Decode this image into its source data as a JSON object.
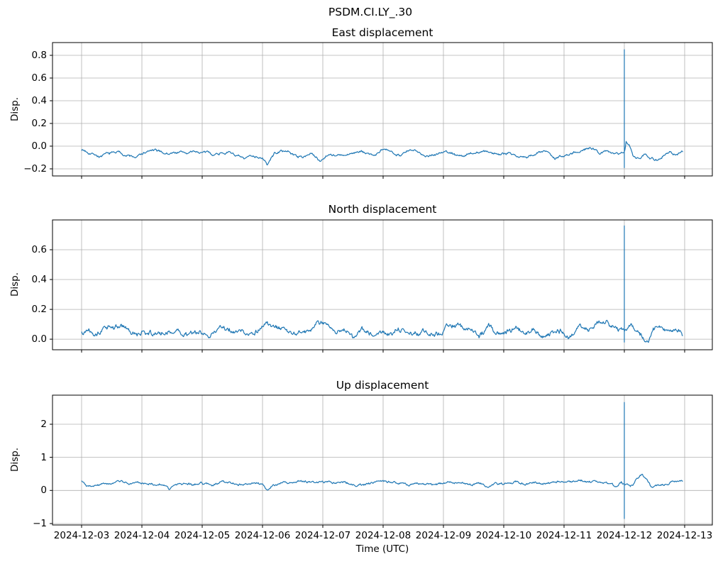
{
  "figure": {
    "suptitle": "PSDM.CI.LY_.30",
    "background": "#ffffff",
    "line_color": "#1f77b4",
    "grid_color": "#b0b0b0",
    "axis_color": "#000000",
    "text_color": "#000000"
  },
  "xaxis": {
    "label": "Time (UTC)",
    "tick_labels": [
      "2024-12-03",
      "2024-12-04",
      "2024-12-05",
      "2024-12-06",
      "2024-12-07",
      "2024-12-08",
      "2024-12-09",
      "2024-12-10",
      "2024-12-11",
      "2024-12-12",
      "2024-12-13"
    ],
    "tick_days": [
      0,
      1,
      2,
      3,
      4,
      5,
      6,
      7,
      8,
      9,
      10
    ],
    "xlim_days": [
      -0.482,
      10.459
    ]
  },
  "chart_data": [
    {
      "type": "line",
      "title": "East displacement",
      "ylabel": "Disp.",
      "ylim": [
        -0.2625,
        0.9125
      ],
      "yticks": [
        -0.2,
        0.0,
        0.2,
        0.4,
        0.6,
        0.8
      ],
      "ytick_labels": [
        "−0.2",
        "0.0",
        "0.2",
        "0.4",
        "0.6",
        "0.8"
      ],
      "x_range_days": [
        0,
        9.97
      ],
      "grid": true,
      "noise_amp": 0.016,
      "jitter": 0.006,
      "noise_seed": 7,
      "spike": {
        "day": 9.0,
        "max": 0.85,
        "min": -0.19
      },
      "baseline_anchors": [
        [
          0,
          -0.03
        ],
        [
          0.1,
          -0.05
        ],
        [
          0.2,
          -0.06
        ],
        [
          0.3,
          -0.09
        ],
        [
          0.45,
          -0.07
        ],
        [
          0.6,
          -0.05
        ],
        [
          0.75,
          -0.08
        ],
        [
          0.9,
          -0.1
        ],
        [
          1.0,
          -0.07
        ],
        [
          1.15,
          -0.04
        ],
        [
          1.3,
          -0.05
        ],
        [
          1.45,
          -0.07
        ],
        [
          1.6,
          -0.05
        ],
        [
          1.75,
          -0.06
        ],
        [
          1.9,
          -0.05
        ],
        [
          2.05,
          -0.06
        ],
        [
          2.2,
          -0.07
        ],
        [
          2.35,
          -0.05
        ],
        [
          2.5,
          -0.06
        ],
        [
          2.7,
          -0.12
        ],
        [
          2.85,
          -0.08
        ],
        [
          3.0,
          -0.1
        ],
        [
          3.08,
          -0.17
        ],
        [
          3.2,
          -0.06
        ],
        [
          3.35,
          -0.04
        ],
        [
          3.5,
          -0.07
        ],
        [
          3.65,
          -0.1
        ],
        [
          3.8,
          -0.06
        ],
        [
          3.95,
          -0.13
        ],
        [
          4.1,
          -0.06
        ],
        [
          4.25,
          -0.08
        ],
        [
          4.4,
          -0.09
        ],
        [
          4.55,
          -0.05
        ],
        [
          4.7,
          -0.06
        ],
        [
          4.85,
          -0.08
        ],
        [
          5.0,
          -0.04
        ],
        [
          5.15,
          -0.05
        ],
        [
          5.3,
          -0.07
        ],
        [
          5.45,
          -0.04
        ],
        [
          5.6,
          -0.06
        ],
        [
          5.75,
          -0.08
        ],
        [
          5.9,
          -0.06
        ],
        [
          6.05,
          -0.05
        ],
        [
          6.2,
          -0.07
        ],
        [
          6.35,
          -0.09
        ],
        [
          6.5,
          -0.06
        ],
        [
          6.65,
          -0.04
        ],
        [
          6.8,
          -0.06
        ],
        [
          6.95,
          -0.07
        ],
        [
          7.1,
          -0.05
        ],
        [
          7.25,
          -0.09
        ],
        [
          7.4,
          -0.1
        ],
        [
          7.55,
          -0.06
        ],
        [
          7.7,
          -0.05
        ],
        [
          7.85,
          -0.11
        ],
        [
          8.0,
          -0.08
        ],
        [
          8.15,
          -0.05
        ],
        [
          8.3,
          -0.03
        ],
        [
          8.45,
          -0.02
        ],
        [
          8.6,
          -0.06
        ],
        [
          8.75,
          -0.05
        ],
        [
          8.9,
          -0.06
        ],
        [
          9.0,
          -0.05
        ],
        [
          9.03,
          0.04
        ],
        [
          9.08,
          0.01
        ],
        [
          9.15,
          -0.08
        ],
        [
          9.25,
          -0.1
        ],
        [
          9.35,
          -0.06
        ],
        [
          9.45,
          -0.1
        ],
        [
          9.55,
          -0.13
        ],
        [
          9.65,
          -0.07
        ],
        [
          9.75,
          -0.05
        ],
        [
          9.85,
          -0.08
        ],
        [
          9.97,
          -0.04
        ]
      ]
    },
    {
      "type": "line",
      "title": "North displacement",
      "ylabel": "Disp.",
      "ylim": [
        -0.071,
        0.8
      ],
      "yticks": [
        0.0,
        0.2,
        0.4,
        0.6
      ],
      "ytick_labels": [
        "0.0",
        "0.2",
        "0.4",
        "0.6"
      ],
      "x_range_days": [
        0,
        9.97
      ],
      "grid": true,
      "noise_amp": 0.024,
      "jitter": 0.008,
      "noise_seed": 13,
      "spike": {
        "day": 9.0,
        "max": 0.76,
        "min": -0.02
      },
      "baseline_anchors": [
        [
          0,
          0.05
        ],
        [
          0.12,
          0.08
        ],
        [
          0.25,
          0.06
        ],
        [
          0.4,
          0.09
        ],
        [
          0.55,
          0.07
        ],
        [
          0.7,
          0.09
        ],
        [
          0.82,
          0.03
        ],
        [
          0.95,
          0.02
        ],
        [
          1.1,
          0.06
        ],
        [
          1.25,
          0.02
        ],
        [
          1.4,
          0.04
        ],
        [
          1.55,
          0.06
        ],
        [
          1.7,
          0.02
        ],
        [
          1.85,
          0.05
        ],
        [
          2.0,
          0.03
        ],
        [
          2.15,
          0.05
        ],
        [
          2.3,
          0.07
        ],
        [
          2.45,
          0.06
        ],
        [
          2.6,
          0.04
        ],
        [
          2.75,
          0.03
        ],
        [
          2.9,
          0.06
        ],
        [
          3.05,
          0.1
        ],
        [
          3.2,
          0.07
        ],
        [
          3.35,
          0.05
        ],
        [
          3.5,
          0.03
        ],
        [
          3.65,
          0.06
        ],
        [
          3.8,
          0.05
        ],
        [
          3.92,
          0.11
        ],
        [
          4.05,
          0.08
        ],
        [
          4.2,
          0.04
        ],
        [
          4.35,
          0.07
        ],
        [
          4.5,
          0.02
        ],
        [
          4.65,
          0.05
        ],
        [
          4.8,
          0.03
        ],
        [
          4.95,
          0.06
        ],
        [
          5.1,
          0.04
        ],
        [
          5.25,
          0.07
        ],
        [
          5.4,
          0.05
        ],
        [
          5.55,
          0.03
        ],
        [
          5.7,
          0.06
        ],
        [
          5.85,
          0.04
        ],
        [
          6.0,
          0.06
        ],
        [
          6.1,
          0.1
        ],
        [
          6.2,
          0.11
        ],
        [
          6.35,
          0.08
        ],
        [
          6.5,
          0.05
        ],
        [
          6.6,
          0.02
        ],
        [
          6.75,
          0.07
        ],
        [
          6.9,
          0.04
        ],
        [
          7.05,
          0.05
        ],
        [
          7.2,
          0.07
        ],
        [
          7.35,
          0.04
        ],
        [
          7.5,
          0.06
        ],
        [
          7.65,
          0.03
        ],
        [
          7.8,
          0.05
        ],
        [
          7.95,
          0.06
        ],
        [
          8.1,
          0.04
        ],
        [
          8.25,
          0.07
        ],
        [
          8.4,
          0.06
        ],
        [
          8.55,
          0.11
        ],
        [
          8.65,
          0.12
        ],
        [
          8.8,
          0.08
        ],
        [
          8.95,
          0.05
        ],
        [
          9.0,
          0.05
        ],
        [
          9.1,
          0.07
        ],
        [
          9.2,
          0.05
        ],
        [
          9.3,
          0.02
        ],
        [
          9.4,
          0.01
        ],
        [
          9.5,
          0.05
        ],
        [
          9.6,
          0.08
        ],
        [
          9.7,
          0.06
        ],
        [
          9.8,
          0.04
        ],
        [
          9.9,
          0.05
        ],
        [
          9.97,
          0.02
        ]
      ]
    },
    {
      "type": "line",
      "title": "Up displacement",
      "ylabel": "Disp.",
      "ylim": [
        -1.043,
        2.878
      ],
      "yticks": [
        -1,
        0,
        1,
        2
      ],
      "ytick_labels": [
        "−1",
        "0",
        "1",
        "2"
      ],
      "x_range_days": [
        0,
        9.97
      ],
      "grid": true,
      "noise_amp": 0.05,
      "jitter": 0.015,
      "noise_seed": 21,
      "spike": {
        "day": 9.0,
        "max": 2.66,
        "min": -0.85
      },
      "baseline_anchors": [
        [
          0,
          0.3
        ],
        [
          0.08,
          0.16
        ],
        [
          0.2,
          0.13
        ],
        [
          0.35,
          0.25
        ],
        [
          0.5,
          0.19
        ],
        [
          0.65,
          0.26
        ],
        [
          0.8,
          0.18
        ],
        [
          0.95,
          0.23
        ],
        [
          1.1,
          0.19
        ],
        [
          1.3,
          0.21
        ],
        [
          1.45,
          0.04
        ],
        [
          1.55,
          0.21
        ],
        [
          1.7,
          0.24
        ],
        [
          1.85,
          0.19
        ],
        [
          2.0,
          0.21
        ],
        [
          2.15,
          0.17
        ],
        [
          2.3,
          0.23
        ],
        [
          2.45,
          0.25
        ],
        [
          2.6,
          0.2
        ],
        [
          2.75,
          0.18
        ],
        [
          2.9,
          0.22
        ],
        [
          3.0,
          0.16
        ],
        [
          3.08,
          -0.02
        ],
        [
          3.18,
          0.19
        ],
        [
          3.3,
          0.22
        ],
        [
          3.45,
          0.21
        ],
        [
          3.6,
          0.28
        ],
        [
          3.75,
          0.25
        ],
        [
          3.9,
          0.22
        ],
        [
          4.05,
          0.26
        ],
        [
          4.2,
          0.2
        ],
        [
          4.35,
          0.24
        ],
        [
          4.5,
          0.18
        ],
        [
          4.65,
          0.13
        ],
        [
          4.8,
          0.22
        ],
        [
          4.95,
          0.26
        ],
        [
          5.1,
          0.28
        ],
        [
          5.25,
          0.22
        ],
        [
          5.4,
          0.18
        ],
        [
          5.55,
          0.23
        ],
        [
          5.7,
          0.2
        ],
        [
          5.85,
          0.15
        ],
        [
          6.0,
          0.22
        ],
        [
          6.15,
          0.26
        ],
        [
          6.3,
          0.2
        ],
        [
          6.45,
          0.15
        ],
        [
          6.6,
          0.21
        ],
        [
          6.75,
          0.13
        ],
        [
          6.9,
          0.19
        ],
        [
          7.05,
          0.23
        ],
        [
          7.2,
          0.26
        ],
        [
          7.35,
          0.21
        ],
        [
          7.5,
          0.23
        ],
        [
          7.65,
          0.18
        ],
        [
          7.8,
          0.26
        ],
        [
          7.95,
          0.29
        ],
        [
          8.1,
          0.23
        ],
        [
          8.25,
          0.26
        ],
        [
          8.4,
          0.29
        ],
        [
          8.55,
          0.26
        ],
        [
          8.7,
          0.23
        ],
        [
          8.85,
          0.1
        ],
        [
          8.95,
          0.23
        ],
        [
          9.0,
          0.16
        ],
        [
          9.1,
          0.1
        ],
        [
          9.2,
          0.33
        ],
        [
          9.3,
          0.5
        ],
        [
          9.38,
          0.3
        ],
        [
          9.45,
          0.08
        ],
        [
          9.55,
          0.15
        ],
        [
          9.65,
          0.2
        ],
        [
          9.72,
          0.16
        ],
        [
          9.82,
          0.28
        ],
        [
          9.97,
          0.3
        ]
      ]
    }
  ]
}
